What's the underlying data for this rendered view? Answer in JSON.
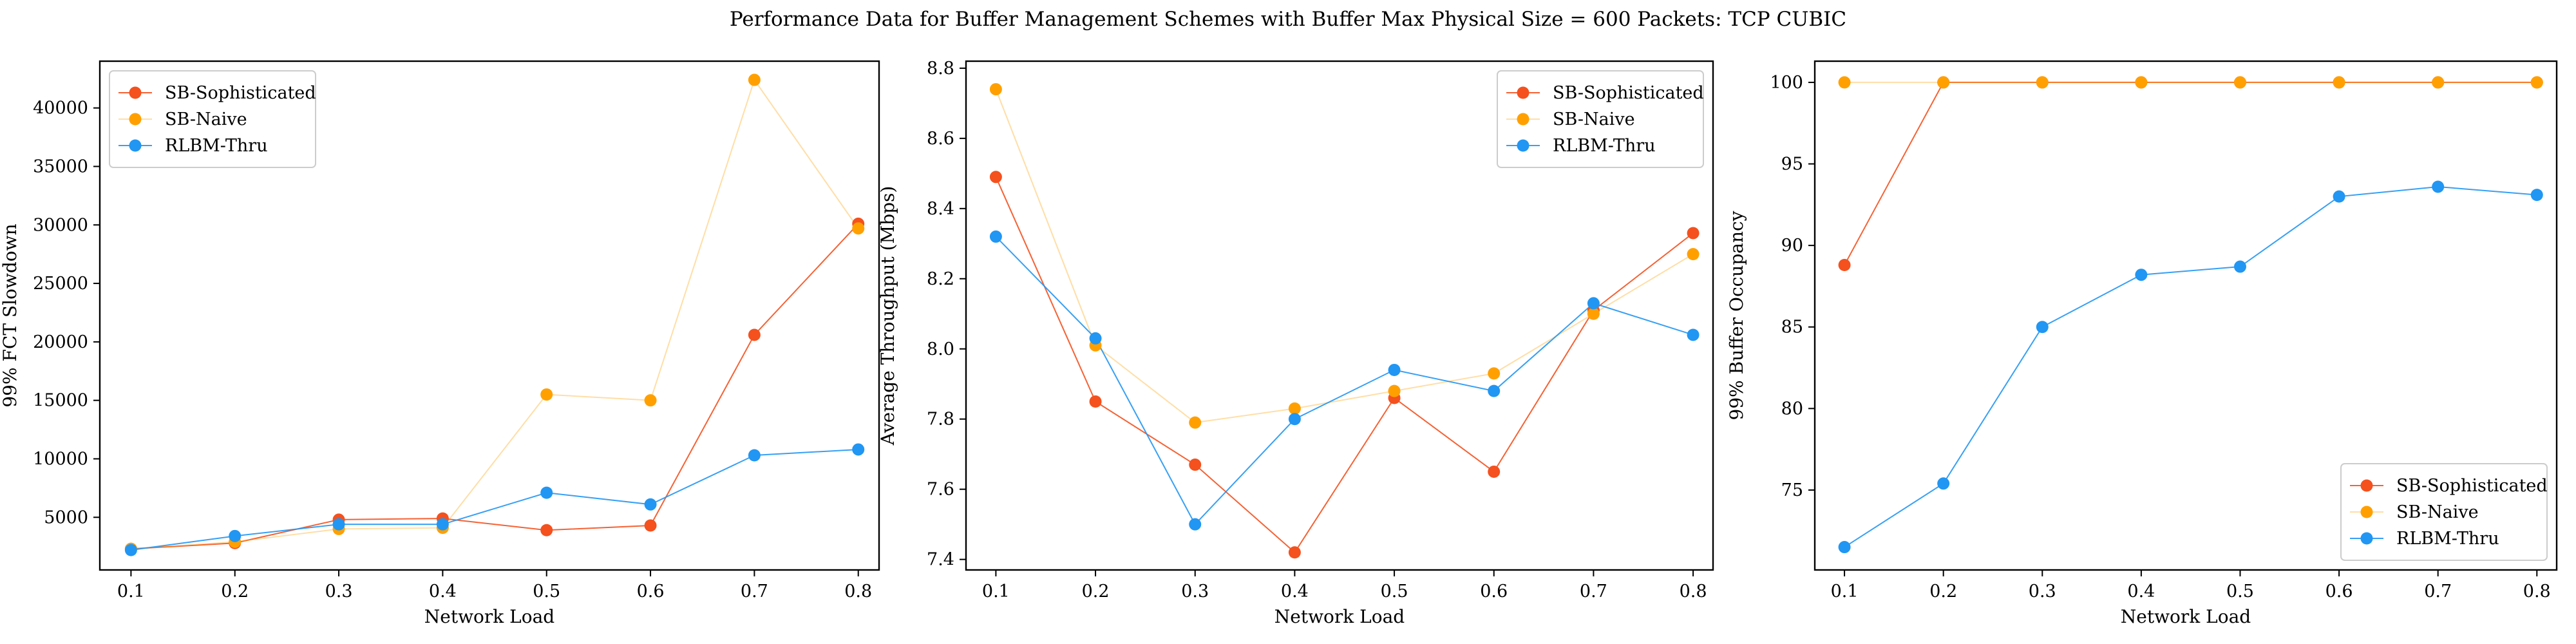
{
  "figure": {
    "title": "Performance Data for Buffer Management Schemes with Buffer Max Physical Size = 600 Packets: TCP CUBIC"
  },
  "colors": {
    "SB-Sophisticated": "#f4511e",
    "SB-Naive": "#ffa000",
    "RLBM-Thru": "#2196f3"
  },
  "chart_data": [
    {
      "type": "line",
      "xlabel": "Network Load",
      "ylabel": "99% FCT Slowdown",
      "x": [
        0.1,
        0.2,
        0.3,
        0.4,
        0.5,
        0.6,
        0.7,
        0.8
      ],
      "xticks": [
        "0.1",
        "0.2",
        "0.3",
        "0.4",
        "0.5",
        "0.6",
        "0.7",
        "0.8"
      ],
      "xlim": [
        0.07,
        0.82
      ],
      "ylim": [
        500,
        44000
      ],
      "yticks": [
        5000,
        10000,
        15000,
        20000,
        25000,
        30000,
        35000,
        40000
      ],
      "legend": "top-left",
      "series": [
        {
          "name": "SB-Sophisticated",
          "values": [
            2300,
            2800,
            4800,
            4900,
            3900,
            4300,
            20600,
            30100
          ]
        },
        {
          "name": "SB-Naive",
          "values": [
            2300,
            2900,
            4000,
            4100,
            15500,
            15000,
            42400,
            29700
          ]
        },
        {
          "name": "RLBM-Thru",
          "values": [
            2200,
            3400,
            4400,
            4400,
            7100,
            6100,
            10300,
            10800
          ]
        }
      ]
    },
    {
      "type": "line",
      "xlabel": "Network Load",
      "ylabel": "Average Throughput (Mbps)",
      "x": [
        0.1,
        0.2,
        0.3,
        0.4,
        0.5,
        0.6,
        0.7,
        0.8
      ],
      "xticks": [
        "0.1",
        "0.2",
        "0.3",
        "0.4",
        "0.5",
        "0.6",
        "0.7",
        "0.8"
      ],
      "xlim": [
        0.07,
        0.82
      ],
      "ylim": [
        7.37,
        8.82
      ],
      "yticks": [
        7.4,
        7.6,
        7.8,
        8.0,
        8.2,
        8.4,
        8.6,
        8.8
      ],
      "legend": "top-right",
      "series": [
        {
          "name": "SB-Sophisticated",
          "values": [
            8.49,
            7.85,
            7.67,
            7.42,
            7.86,
            7.65,
            8.11,
            8.33
          ]
        },
        {
          "name": "SB-Naive",
          "values": [
            8.74,
            8.01,
            7.79,
            7.83,
            7.88,
            7.93,
            8.1,
            8.27
          ]
        },
        {
          "name": "RLBM-Thru",
          "values": [
            8.32,
            8.03,
            7.5,
            7.8,
            7.94,
            7.88,
            8.13,
            8.04
          ]
        }
      ]
    },
    {
      "type": "line",
      "xlabel": "Network Load",
      "ylabel": "99% Buffer Occupancy",
      "x": [
        0.1,
        0.2,
        0.3,
        0.4,
        0.5,
        0.6,
        0.7,
        0.8
      ],
      "xticks": [
        "0.1",
        "0.2",
        "0.3",
        "0.4",
        "0.5",
        "0.6",
        "0.7",
        "0.8"
      ],
      "xlim": [
        0.07,
        0.82
      ],
      "ylim": [
        70.1,
        101.3
      ],
      "yticks": [
        75,
        80,
        85,
        90,
        95,
        100
      ],
      "legend": "bottom-right",
      "series": [
        {
          "name": "SB-Sophisticated",
          "values": [
            88.8,
            100.0,
            100.0,
            100.0,
            100.0,
            100.0,
            100.0,
            100.0
          ]
        },
        {
          "name": "SB-Naive",
          "values": [
            100.0,
            100.0,
            100.0,
            100.0,
            100.0,
            100.0,
            100.0,
            100.0
          ]
        },
        {
          "name": "RLBM-Thru",
          "values": [
            71.5,
            75.4,
            85.0,
            88.2,
            88.7,
            93.0,
            93.6,
            93.1
          ]
        }
      ]
    }
  ]
}
